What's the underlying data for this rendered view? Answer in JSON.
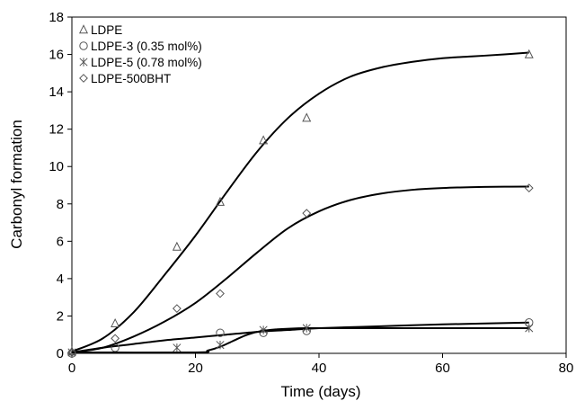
{
  "chart_data": {
    "type": "scatter",
    "title": "",
    "xlabel": "Time (days)",
    "ylabel": "Carbonyl formation",
    "xlim": [
      0,
      80
    ],
    "ylim": [
      0,
      18
    ],
    "xticks": [
      "0",
      "20",
      "40",
      "60",
      "80"
    ],
    "yticks": [
      "0",
      "2",
      "4",
      "6",
      "8",
      "10",
      "12",
      "14",
      "16",
      "18"
    ],
    "grid": false,
    "legend_position": "top-left",
    "series": [
      {
        "name": "LDPE",
        "marker": "triangle",
        "points": [
          [
            0,
            0.1
          ],
          [
            7,
            1.6
          ],
          [
            17,
            5.7
          ],
          [
            24,
            8.1
          ],
          [
            31,
            11.4
          ],
          [
            38,
            12.6
          ],
          [
            74,
            16.0
          ]
        ],
        "curve": [
          [
            0,
            0.1
          ],
          [
            5,
            0.8
          ],
          [
            10,
            2.2
          ],
          [
            15,
            4.2
          ],
          [
            20,
            6.3
          ],
          [
            25,
            8.6
          ],
          [
            30,
            10.8
          ],
          [
            35,
            12.6
          ],
          [
            40,
            13.9
          ],
          [
            45,
            14.8
          ],
          [
            50,
            15.3
          ],
          [
            55,
            15.6
          ],
          [
            60,
            15.8
          ],
          [
            65,
            15.9
          ],
          [
            70,
            16.0
          ],
          [
            74,
            16.1
          ]
        ]
      },
      {
        "name": "LDPE-3 (0.35 mol%)",
        "marker": "circle",
        "points": [
          [
            0,
            0.0
          ],
          [
            7,
            0.3
          ],
          [
            24,
            1.1
          ],
          [
            31,
            1.1
          ],
          [
            38,
            1.2
          ],
          [
            74,
            1.65
          ]
        ],
        "curve": [
          [
            0,
            0.05
          ],
          [
            5,
            0.3
          ],
          [
            10,
            0.5
          ],
          [
            15,
            0.7
          ],
          [
            20,
            0.85
          ],
          [
            25,
            1.0
          ],
          [
            30,
            1.15
          ],
          [
            35,
            1.25
          ],
          [
            40,
            1.35
          ],
          [
            50,
            1.45
          ],
          [
            60,
            1.55
          ],
          [
            74,
            1.65
          ]
        ]
      },
      {
        "name": "LDPE-5 (0.78 mol%)",
        "marker": "asterisk",
        "points": [
          [
            0,
            0.05
          ],
          [
            17,
            0.3
          ],
          [
            24,
            0.45
          ],
          [
            31,
            1.25
          ],
          [
            38,
            1.35
          ],
          [
            74,
            1.35
          ]
        ],
        "curve": [
          [
            0,
            0.05
          ],
          [
            20,
            0.05
          ],
          [
            22,
            0.15
          ],
          [
            24,
            0.35
          ],
          [
            26,
            0.65
          ],
          [
            28,
            0.95
          ],
          [
            30,
            1.15
          ],
          [
            33,
            1.28
          ],
          [
            38,
            1.35
          ],
          [
            50,
            1.35
          ],
          [
            74,
            1.35
          ]
        ]
      },
      {
        "name": "LDPE-500BHT",
        "marker": "diamond",
        "points": [
          [
            0,
            0.05
          ],
          [
            7,
            0.8
          ],
          [
            17,
            2.4
          ],
          [
            24,
            3.2
          ],
          [
            38,
            7.5
          ],
          [
            74,
            8.85
          ]
        ],
        "curve": [
          [
            0,
            0.05
          ],
          [
            5,
            0.3
          ],
          [
            10,
            0.9
          ],
          [
            15,
            1.7
          ],
          [
            20,
            2.7
          ],
          [
            25,
            4.0
          ],
          [
            30,
            5.4
          ],
          [
            35,
            6.7
          ],
          [
            40,
            7.6
          ],
          [
            45,
            8.2
          ],
          [
            50,
            8.55
          ],
          [
            55,
            8.75
          ],
          [
            60,
            8.85
          ],
          [
            65,
            8.9
          ],
          [
            70,
            8.92
          ],
          [
            74,
            8.93
          ]
        ]
      }
    ]
  },
  "colors": {
    "line": "#000000",
    "marker": "#555555",
    "axis": "#000000"
  }
}
